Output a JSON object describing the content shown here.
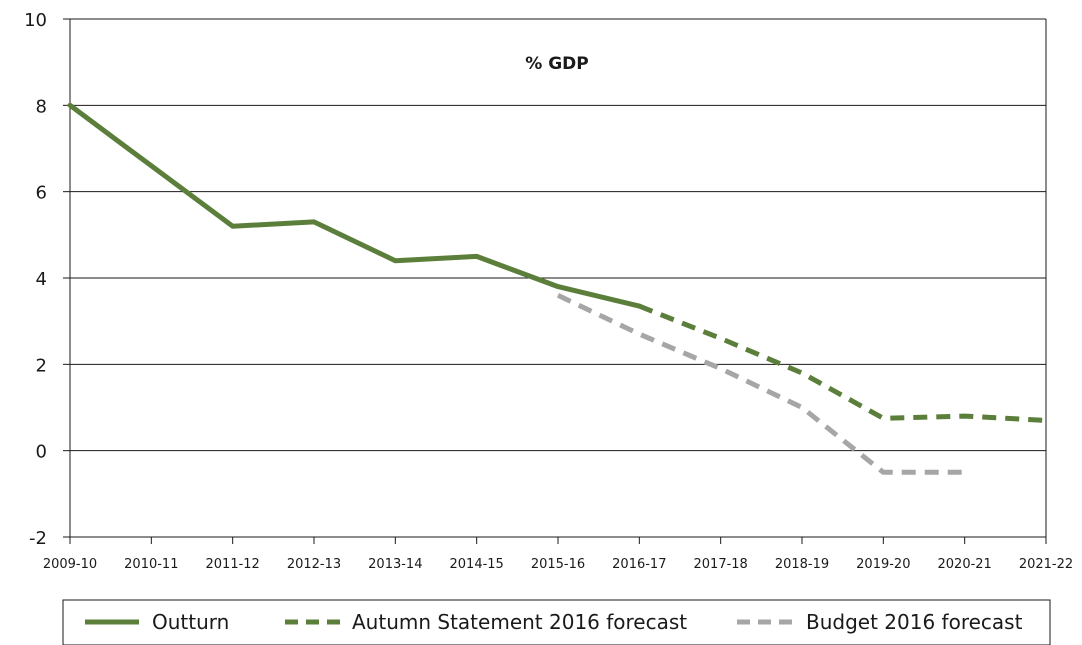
{
  "chart_data": {
    "type": "line",
    "title": "% GDP",
    "xlabel": "",
    "ylabel": "",
    "categories": [
      "2009-10",
      "2010-11",
      "2011-12",
      "2012-13",
      "2013-14",
      "2014-15",
      "2015-16",
      "2016-17",
      "2017-18",
      "2018-19",
      "2019-20",
      "2020-21",
      "2021-22"
    ],
    "ylim": [
      -2,
      10
    ],
    "yticks": [
      -2,
      0,
      2,
      4,
      6,
      8,
      10
    ],
    "grid": true,
    "legend_position": "bottom",
    "series": [
      {
        "name": "Outturn",
        "style": "solid",
        "color": "#5b7f3b",
        "values": [
          8.0,
          6.6,
          5.2,
          5.3,
          4.4,
          4.5,
          3.8,
          3.35,
          null,
          null,
          null,
          null,
          null
        ]
      },
      {
        "name": "Autumn Statement 2016 forecast",
        "style": "dashed",
        "color": "#5b7f3b",
        "values": [
          null,
          null,
          null,
          null,
          null,
          null,
          null,
          3.35,
          2.6,
          1.8,
          0.75,
          0.8,
          0.7
        ]
      },
      {
        "name": "Budget 2016 forecast",
        "style": "dashed",
        "color": "#a6a6a6",
        "values": [
          null,
          null,
          null,
          null,
          null,
          null,
          3.6,
          2.7,
          1.9,
          1.0,
          -0.5,
          -0.5,
          null
        ]
      }
    ]
  }
}
